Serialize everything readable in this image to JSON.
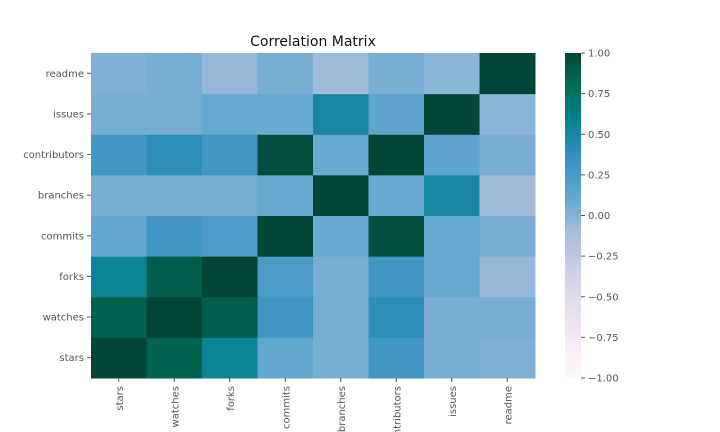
{
  "chart_data": {
    "type": "heatmap",
    "title": "Correlation Matrix",
    "xlabel": "",
    "ylabel": "",
    "x_categories": [
      "stars",
      "watches",
      "forks",
      "commits",
      "branches",
      "contributors",
      "issues",
      "readme"
    ],
    "y_categories": [
      "stars",
      "watches",
      "forks",
      "commits",
      "branches",
      "contributors",
      "issues",
      "readme"
    ],
    "matrix": [
      [
        1.0,
        0.85,
        0.55,
        0.12,
        0.05,
        0.3,
        0.05,
        0.02
      ],
      [
        0.85,
        1.0,
        0.88,
        0.3,
        0.05,
        0.4,
        0.05,
        0.05
      ],
      [
        0.55,
        0.88,
        1.0,
        0.25,
        0.05,
        0.3,
        0.1,
        -0.05
      ],
      [
        0.12,
        0.3,
        0.25,
        1.0,
        0.1,
        0.95,
        0.1,
        0.05
      ],
      [
        0.05,
        0.05,
        0.05,
        0.1,
        1.0,
        0.1,
        0.5,
        -0.08
      ],
      [
        0.3,
        0.4,
        0.3,
        0.95,
        0.1,
        1.0,
        0.15,
        0.05
      ],
      [
        0.05,
        0.05,
        0.1,
        0.1,
        0.5,
        0.15,
        1.0,
        -0.02
      ],
      [
        0.02,
        0.05,
        -0.05,
        0.05,
        -0.08,
        0.05,
        -0.02,
        1.0
      ]
    ],
    "colorbar": {
      "min": -1.0,
      "max": 1.0,
      "ticks": [
        "1.00",
        "0.75",
        "0.50",
        "0.25",
        "0.00",
        "−0.25",
        "−0.50",
        "−0.75",
        "−1.00"
      ],
      "tick_values": [
        1.0,
        0.75,
        0.5,
        0.25,
        0.0,
        -0.25,
        -0.5,
        -0.75,
        -1.0
      ]
    },
    "colormap": "PuBuGn",
    "grid": false
  }
}
